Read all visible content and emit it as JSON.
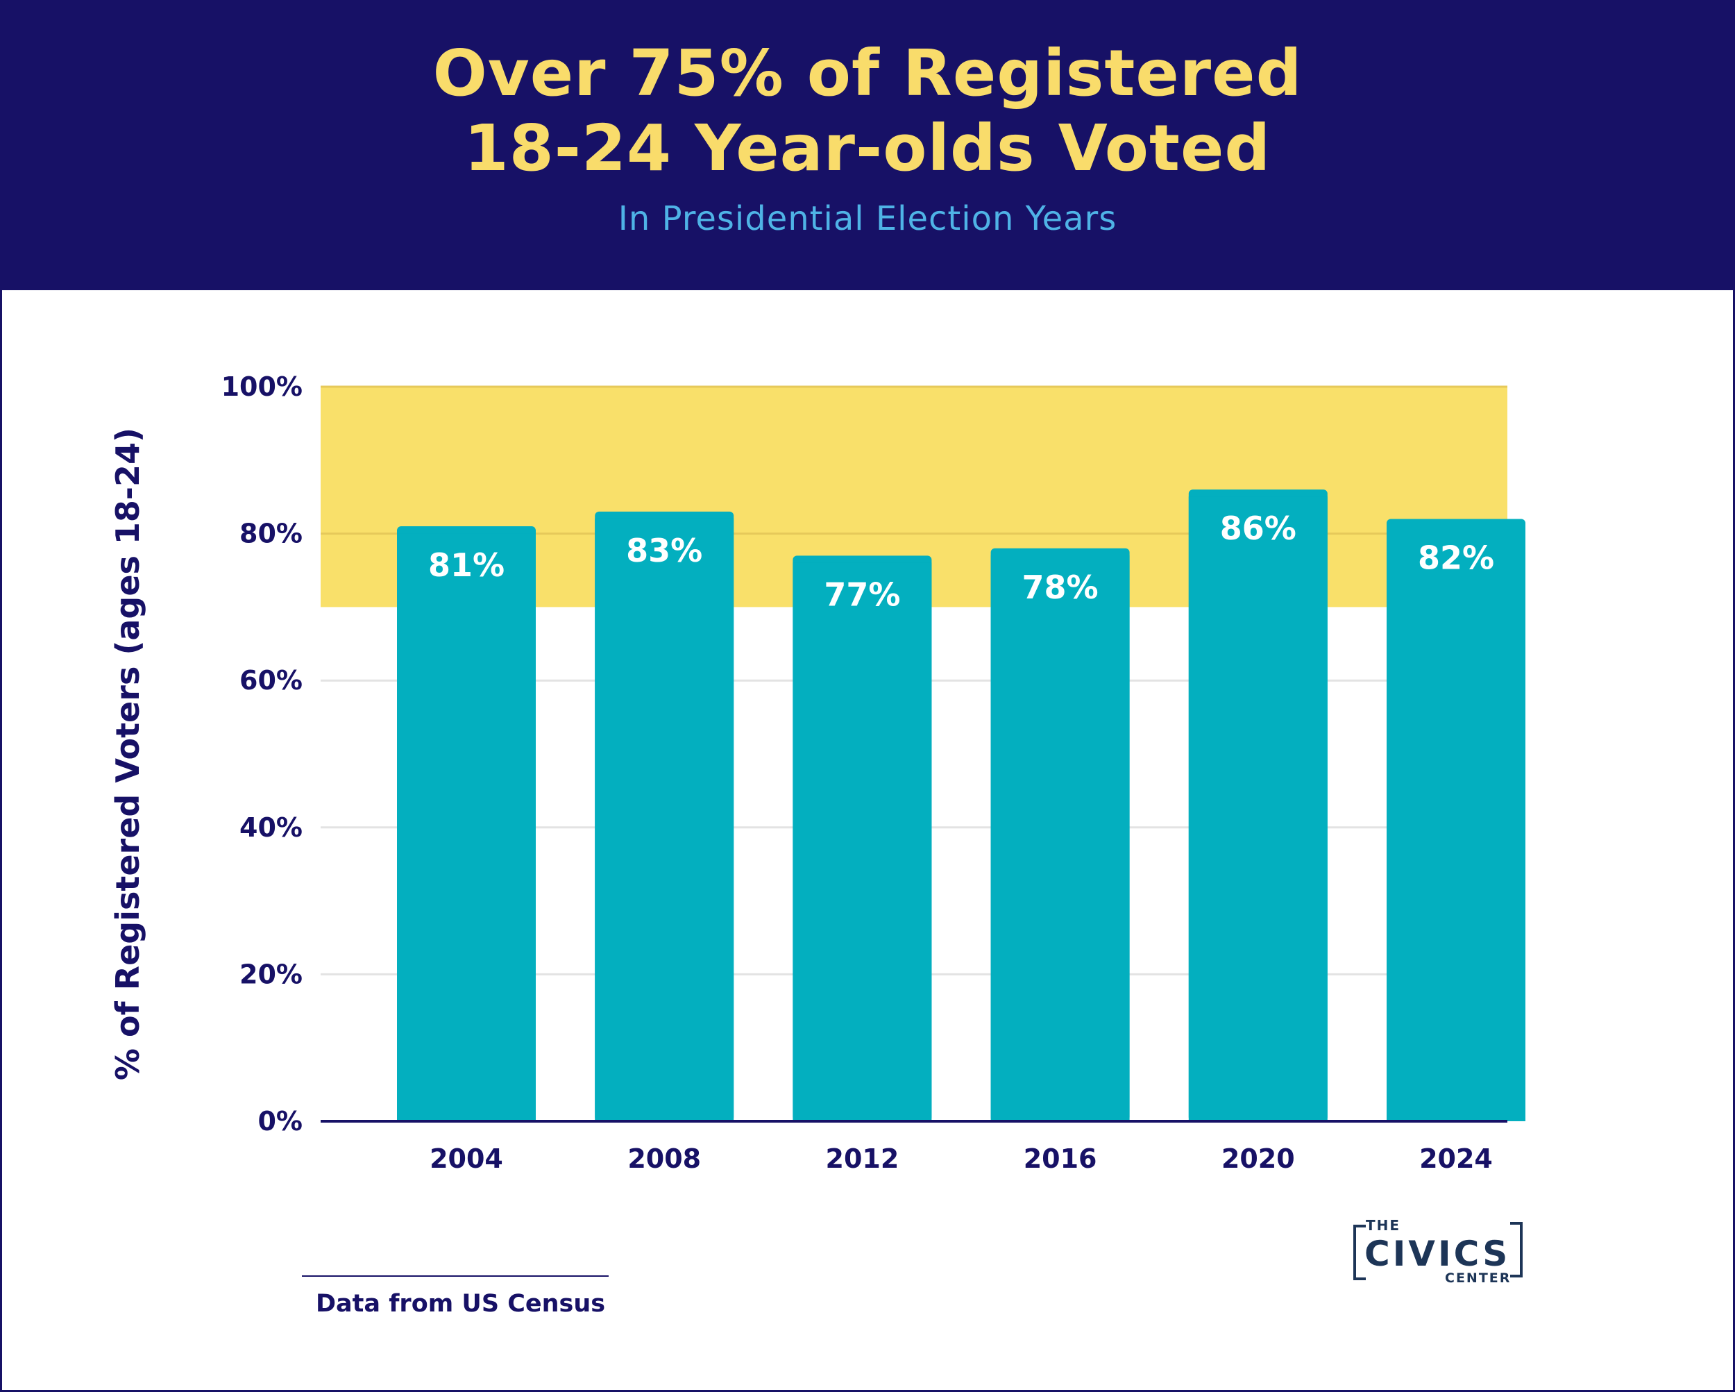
{
  "header": {
    "title_line1": "Over 75% of Registered",
    "title_line2": "18-24 Year-olds Voted",
    "subtitle": "In Presidential Election Years"
  },
  "colors": {
    "header_bg": "#171166",
    "title": "#f9dc6b",
    "subtitle": "#4fb3e6",
    "bar": "#03afbf",
    "highlight_band": "#f9e06a",
    "axis_text": "#171166",
    "bar_label": "#ffffff"
  },
  "chart_data": {
    "type": "bar",
    "categories": [
      "2004",
      "2008",
      "2012",
      "2016",
      "2020",
      "2024"
    ],
    "values": [
      81,
      83,
      77,
      78,
      86,
      82
    ],
    "value_labels": [
      "81%",
      "83%",
      "77%",
      "78%",
      "86%",
      "82%"
    ],
    "ylabel": "% of Registered Voters (ages 18-24)",
    "ylim": [
      0,
      100
    ],
    "yticks": [
      0,
      20,
      40,
      60,
      80,
      100
    ],
    "ytick_labels": [
      "0%",
      "20%",
      "40%",
      "60%",
      "80%",
      "100%"
    ],
    "highlight_band": [
      70,
      100
    ],
    "grid": true
  },
  "footer": {
    "source": "Data from US Census",
    "logo_the": "THE",
    "logo_civics": "CIVICS",
    "logo_center": "CENTER"
  }
}
